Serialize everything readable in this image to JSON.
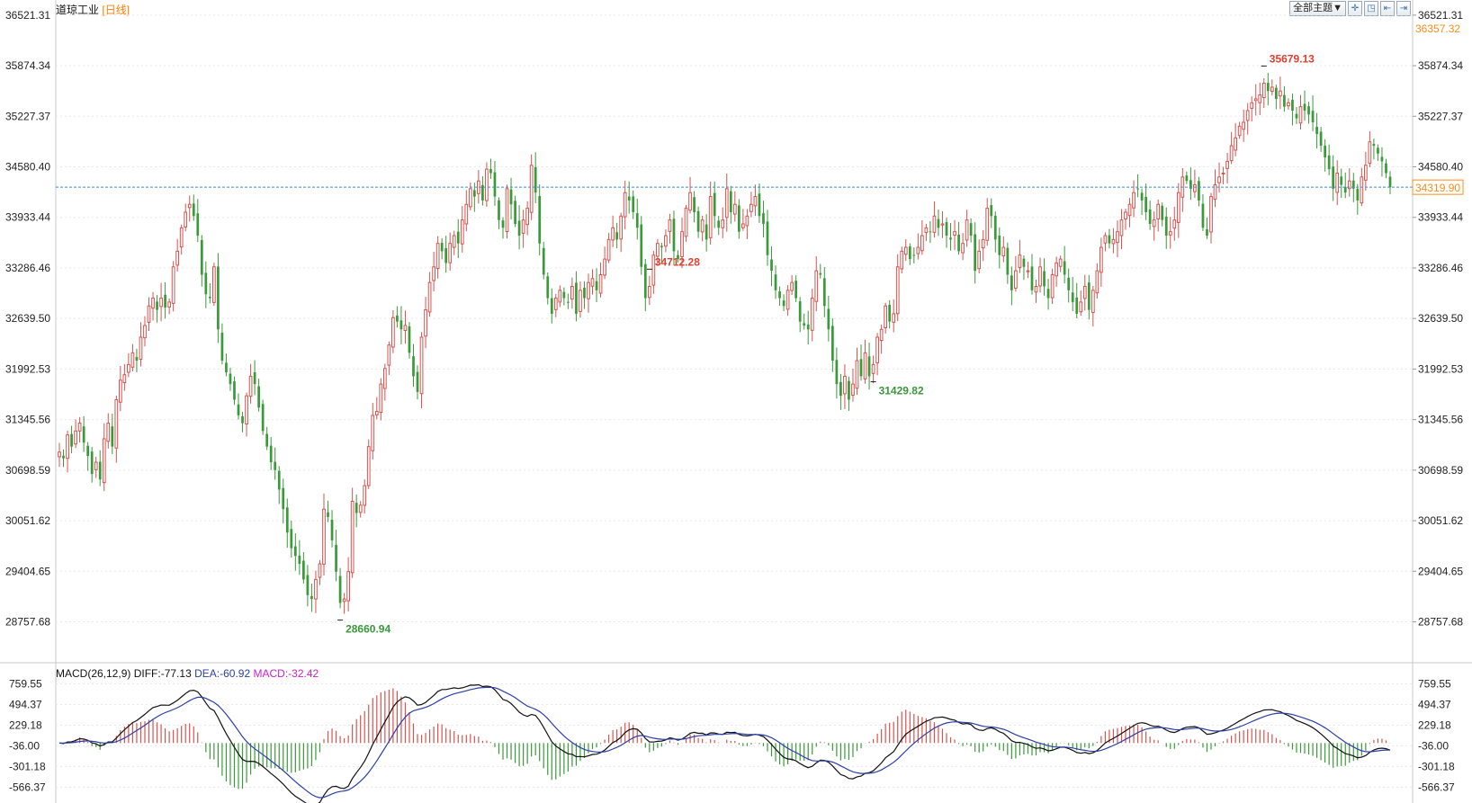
{
  "header": {
    "instrument": "道琼工业",
    "period": "[日线]",
    "theme_button": "全部主题▼"
  },
  "toolbar_icons": [
    "crosshair-icon",
    "restore-icon",
    "collapse-icon",
    "close-panel-icon"
  ],
  "colors": {
    "up": "#d9534f",
    "down": "#3a9a3a",
    "price_line": "#3d8bd9",
    "diff": "#111111",
    "dea": "#2b3fa8",
    "macd_text": "#d020d0",
    "high_label": "#e04030",
    "low_label": "#3a9a3a",
    "tag_bg": "#ffffff",
    "tag_fg": "#ff8c1a",
    "grid": "#e8e8e8"
  },
  "chart_data": [
    {
      "type": "candlestick",
      "axis_ticks": [
        "36521.31",
        "35874.34",
        "35227.37",
        "34580.40",
        "33933.44",
        "33286.46",
        "32639.50",
        "31992.53",
        "31345.56",
        "30698.59",
        "30051.62",
        "29404.65",
        "28757.68"
      ],
      "ylim": [
        28430,
        36600
      ],
      "current_price": "34319.90",
      "top_tag": "36357.32",
      "annotations": {
        "high1": "34712.28",
        "high2": "35679.13",
        "low1": "28660.94",
        "low2": "31429.82"
      },
      "closes": [
        30930,
        30850,
        31150,
        31000,
        31200,
        31300,
        31050,
        30880,
        30650,
        30800,
        30580,
        31100,
        31300,
        31000,
        31600,
        31850,
        31920,
        32050,
        32200,
        32100,
        32400,
        32550,
        32800,
        32900,
        32750,
        32900,
        32780,
        32850,
        33300,
        33500,
        33800,
        34000,
        34100,
        33950,
        33700,
        33200,
        32950,
        32900,
        33300,
        32500,
        32100,
        31950,
        31800,
        31600,
        31400,
        31300,
        31650,
        31900,
        31800,
        31500,
        31200,
        31000,
        30800,
        30700,
        30450,
        30200,
        29900,
        29700,
        29600,
        29500,
        29300,
        29100,
        29050,
        29300,
        29500,
        30200,
        30100,
        29800,
        29400,
        29000,
        29050,
        29400,
        30300,
        30150,
        30250,
        30500,
        31000,
        31400,
        31450,
        31800,
        32000,
        32300,
        32650,
        32600,
        32500,
        32550,
        32200,
        31900,
        31700,
        32400,
        32750,
        33100,
        33300,
        33600,
        33500,
        33350,
        33600,
        33700,
        33600,
        33900,
        34100,
        34300,
        34200,
        34400,
        34150,
        34550,
        34500,
        34200,
        33900,
        33800,
        34300,
        34100,
        33850,
        33700,
        33900,
        34050,
        34600,
        34250,
        33600,
        33200,
        32900,
        32700,
        32900,
        33000,
        32900,
        32850,
        33050,
        32700,
        33000,
        32900,
        33100,
        33150,
        33000,
        33200,
        33400,
        33650,
        33800,
        33650,
        33950,
        34250,
        34150,
        34000,
        33800,
        33300,
        32900,
        33050,
        33450,
        33600,
        33550,
        33700,
        33900,
        33500,
        33400,
        33750,
        34050,
        34250,
        34000,
        33750,
        33900,
        33650,
        34200,
        33950,
        33800,
        33900,
        34300,
        34000,
        34100,
        33750,
        33850,
        33950,
        34100,
        34200,
        33950,
        33850,
        33450,
        33250,
        33000,
        32900,
        32800,
        33000,
        33100,
        32900,
        32600,
        32550,
        32500,
        32900,
        33250,
        33200,
        32800,
        32500,
        32100,
        31800,
        31650,
        31900,
        31600,
        31800,
        32100,
        31900,
        32200,
        31900,
        32050,
        32400,
        32500,
        32800,
        32600,
        32700,
        33300,
        33500,
        33550,
        33400,
        33450,
        33550,
        33700,
        33800,
        33750,
        33950,
        33800,
        33850,
        33700,
        33650,
        33750,
        33500,
        33600,
        33900,
        33700,
        33250,
        33500,
        33650,
        34050,
        33950,
        33650,
        33450,
        33550,
        33200,
        33000,
        33250,
        33450,
        33300,
        33250,
        33000,
        33050,
        33300,
        33050,
        32900,
        33200,
        33350,
        33400,
        33200,
        33000,
        32850,
        32700,
        32850,
        33050,
        32750,
        33000,
        33250,
        33550,
        33700,
        33600,
        33650,
        33750,
        33900,
        34000,
        34100,
        34250,
        34300,
        34150,
        34000,
        33850,
        33900,
        34100,
        33900,
        33700,
        33750,
        33900,
        34250,
        34450,
        34400,
        34300,
        34350,
        34150,
        33800,
        33700,
        34200,
        34350,
        34450,
        34500,
        34650,
        34850,
        34950,
        35100,
        35150,
        35300,
        35400,
        35450,
        35500,
        35650,
        35550,
        35600,
        35450,
        35550,
        35350,
        35400,
        35300,
        35200,
        35350,
        35300,
        35250,
        35150,
        35000,
        34850,
        34700,
        34550,
        34300,
        34500,
        34350,
        34250,
        34400,
        34300,
        34150,
        34450,
        34600,
        34900,
        34850,
        34750,
        34650,
        34500,
        34319.9
      ],
      "price_line": 34319.9
    },
    {
      "type": "histogram+line",
      "title": "MACD(26,12,9)",
      "diff_label": "DIFF:-77.13",
      "dea_label": "DEA:-60.92",
      "macd_label": "MACD:-32.42",
      "axis_ticks": [
        "759.55",
        "494.37",
        "229.18",
        "-36.00",
        "-301.18",
        "-566.37"
      ],
      "ylim": [
        -770,
        800
      ]
    }
  ]
}
